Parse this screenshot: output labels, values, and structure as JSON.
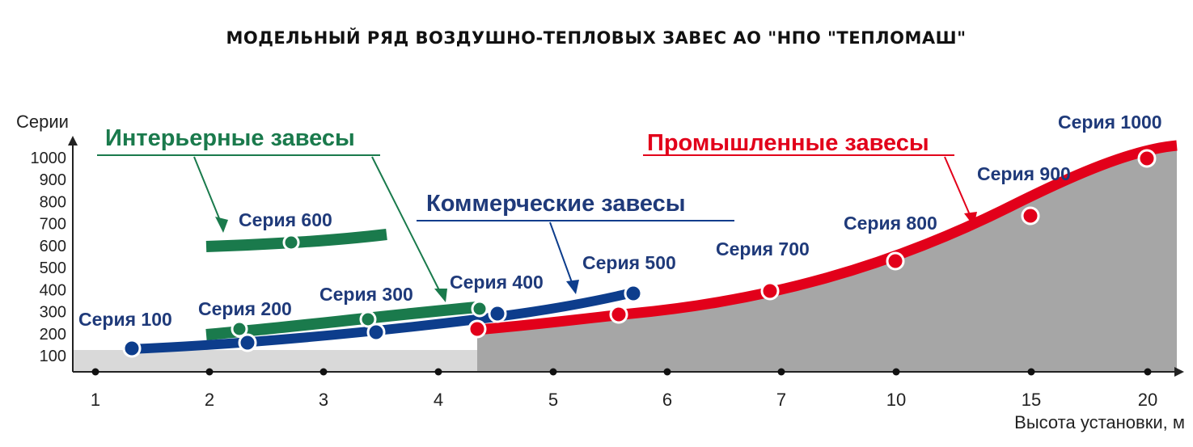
{
  "chart_data": {
    "type": "line",
    "title": "МОДЕЛЬНЫЙ РЯД ВОЗДУШНО-ТЕПЛОВЫХ ЗАВЕС АО \"НПО \"ТЕПЛОМАШ\"",
    "ylabel": "Серии",
    "xlabel": "Высота установки, м",
    "x_ticks": [
      "1",
      "2",
      "3",
      "4",
      "5",
      "6",
      "7",
      "10",
      "15",
      "20"
    ],
    "y_ticks": [
      100,
      200,
      300,
      400,
      500,
      600,
      700,
      800,
      900,
      1000
    ],
    "ylim": [
      0,
      1000
    ],
    "groups": [
      {
        "name": "Интерьерные завесы",
        "color": "#1a7a4c",
        "label_color": "#1a7a4c",
        "curves": [
          {
            "x": [
              2.0,
              2.5,
              3.0,
              3.5
            ],
            "y": [
              590,
              605,
              625,
              645
            ]
          },
          {
            "x": [
              2.0,
              3.0,
              4.0,
              4.4
            ],
            "y": [
              170,
              215,
              275,
              310
            ]
          }
        ],
        "points": [
          {
            "label": "Серия 200",
            "x": 2.25,
            "y": 200
          },
          {
            "label": "Серия 300",
            "x": 3.4,
            "y": 255
          },
          {
            "label": "Серия 400",
            "x": 4.35,
            "y": 300
          },
          {
            "label": "Серия 600",
            "x": 2.7,
            "y": 605
          }
        ]
      },
      {
        "name": "Коммерческие завесы",
        "color": "#0d3d8c",
        "label_color": "#1f3a7a",
        "curves": [
          {
            "x": [
              1.3,
              2.0,
              3.0,
              4.0,
              5.0,
              5.7
            ],
            "y": [
              110,
              125,
              160,
              220,
              295,
              365
            ]
          }
        ],
        "points": [
          {
            "label": "Серия 100",
            "x": 1.33,
            "y": 110
          },
          {
            "label": "Серия 200",
            "x": 2.35,
            "y": 135
          },
          {
            "label": "Серия 300",
            "x": 3.45,
            "y": 180
          },
          {
            "label": "Серия 400",
            "x": 4.55,
            "y": 265
          },
          {
            "label": "Серия 500",
            "x": 5.7,
            "y": 355
          }
        ]
      },
      {
        "name": "Промышленные завесы",
        "color": "#e2001a",
        "label_color": "#e2001a",
        "curves": [
          {
            "x": [
              4.35,
              5.0,
              6.0,
              7.0,
              8.0,
              9.0,
              9.5
            ],
            "y": [
              190,
              220,
              290,
              390,
              530,
              720,
              1005
            ]
          }
        ],
        "points": [
          {
            "label": "Серия 200",
            "x": 4.35,
            "y": 190
          },
          {
            "label": "Серия 300",
            "x": 5.6,
            "y": 265
          },
          {
            "label": "Серия 700",
            "x": 6.9,
            "y": 370
          },
          {
            "label": "Серия 800",
            "x": 7.95,
            "y": 500
          },
          {
            "label": "Серия 900",
            "x": 8.95,
            "y": 700
          },
          {
            "label": "Серия 1000",
            "x": 9.0,
            "y": 965
          }
        ]
      }
    ],
    "labels": {
      "interior": "Интерьерные завесы",
      "commercial": "Коммерческие завесы",
      "industrial": "Промышленные завесы",
      "s100": "Серия 100",
      "s200": "Серия 200",
      "s300": "Серия 300",
      "s400": "Серия 400",
      "s500": "Серия 500",
      "s600": "Серия 600",
      "s700": "Серия 700",
      "s800": "Серия 800",
      "s900": "Серия 900",
      "s1000": "Серия 1000"
    }
  }
}
